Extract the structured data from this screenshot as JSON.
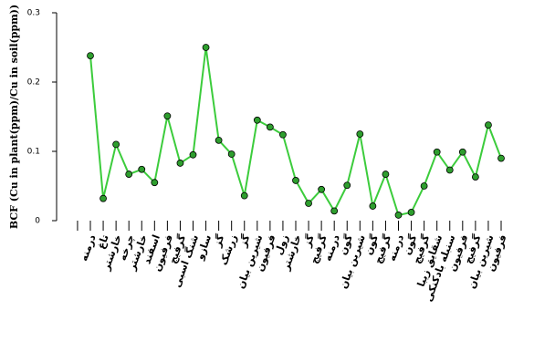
{
  "chart_data": {
    "type": "line",
    "y_label": "BCF (Cu in plant(ppm)/Cu in soil(ppm))",
    "categories": [
      "درمنه",
      "تاغ",
      "خارشتر",
      "چرخه",
      "خارشتر",
      "اسفند",
      "فرفیون",
      "گرفیج",
      "شنگ اسبی",
      "سازو",
      "گز",
      "زرشک",
      "گز",
      "شیرین بیان",
      "فرفیون",
      "زول",
      "خارشتر",
      "گز",
      "گرفیج",
      "درمنه",
      "گون",
      "شیرین بیان",
      "گون",
      "گرفیج",
      "درمنه",
      "گون",
      "گرفیج",
      "شقایق زیبا",
      "سنبله بادکنکی",
      "فرفیون",
      "گرفیج",
      "شیرین بیان",
      "فرفیون"
    ],
    "series": [
      {
        "name": "BCF",
        "color": "#3ccc3c",
        "marker_color": "#2e9e2e",
        "values": [
          0.238,
          0.032,
          0.11,
          0.067,
          0.074,
          0.055,
          0.151,
          0.083,
          0.095,
          0.25,
          0.116,
          0.096,
          0.036,
          0.145,
          0.135,
          0.124,
          0.058,
          0.025,
          0.045,
          0.014,
          0.051,
          0.125,
          0.021,
          0.067,
          0.008,
          0.012,
          0.05,
          0.099,
          0.073,
          0.099,
          0.063,
          0.138,
          0.09
        ]
      }
    ],
    "ylim": [
      0,
      0.3
    ],
    "yticks": [
      0,
      0.1,
      0.2,
      0.3
    ]
  }
}
